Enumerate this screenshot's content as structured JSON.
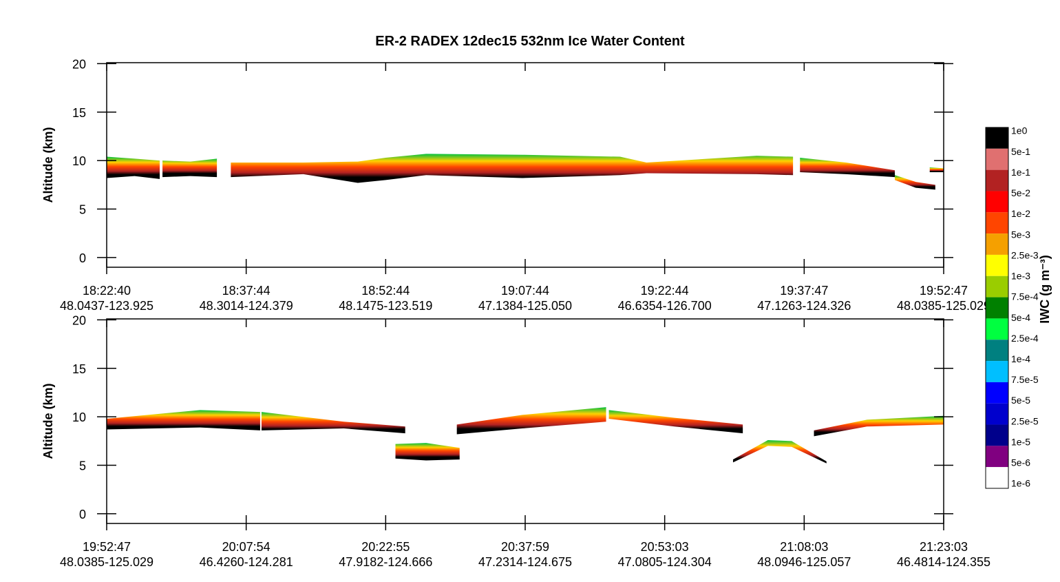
{
  "title": "ER-2  RADEX  12dec15  532nm Ice Water Content",
  "chart_data": [
    {
      "type": "area",
      "ylabel": "Altitude (km)",
      "ylim": [
        -1,
        20.1
      ],
      "yticks": [
        0,
        5,
        10,
        15,
        20
      ],
      "xlim": [
        0,
        6
      ],
      "xticks": [
        {
          "value": 0,
          "label": "18:22:40",
          "location": "48.0437-123.925"
        },
        {
          "value": 1,
          "label": "18:37:44",
          "location": "48.3014-124.379"
        },
        {
          "value": 2,
          "label": "18:52:44",
          "location": "48.1475-123.519"
        },
        {
          "value": 3,
          "label": "19:07:44",
          "location": "47.1384-125.050"
        },
        {
          "value": 4,
          "label": "19:22:44",
          "location": "46.6354-126.700"
        },
        {
          "value": 5,
          "label": "19:37:47",
          "location": "47.1263-124.326"
        },
        {
          "value": 6,
          "label": "19:52:47",
          "location": "48.0385-125.029"
        }
      ],
      "clouds": [
        {
          "x": [
            0,
            0.2,
            0.38
          ],
          "top": [
            10.4,
            10.2,
            10.0
          ],
          "base": [
            8.2,
            8.4,
            8.1
          ]
        },
        {
          "x": [
            0.4,
            0.6,
            0.79
          ],
          "top": [
            10,
            9.9,
            10.2
          ],
          "base": [
            8.3,
            8.4,
            8.3
          ]
        },
        {
          "x": [
            0.89,
            1.41,
            1.8,
            2.0,
            2.29,
            2.98,
            3.68,
            3.87,
            4.66,
            4.92
          ],
          "top": [
            9.8,
            9.8,
            9.9,
            10.3,
            10.7,
            10.6,
            10.4,
            9.8,
            10.5,
            10.4
          ],
          "base": [
            8.3,
            8.6,
            7.7,
            8.0,
            8.5,
            8.2,
            8.5,
            8.7,
            8.6,
            8.5
          ]
        },
        {
          "x": [
            4.97,
            5.3,
            5.65
          ],
          "top": [
            10.3,
            9.8,
            9.0
          ],
          "base": [
            8.8,
            8.6,
            8.3
          ]
        },
        {
          "x": [
            5.65,
            5.8,
            5.94
          ],
          "top": [
            8.5,
            7.8,
            7.5
          ],
          "base": [
            8.0,
            7.2,
            7.0
          ]
        },
        {
          "x": [
            5.9,
            6.0
          ],
          "top": [
            9.3,
            9.2
          ],
          "base": [
            8.8,
            8.8
          ]
        }
      ]
    },
    {
      "type": "area",
      "ylabel": "Altitude (km)",
      "ylim": [
        -1,
        20.1
      ],
      "yticks": [
        0,
        5,
        10,
        15,
        20
      ],
      "xlim": [
        0,
        6
      ],
      "xticks": [
        {
          "value": 0,
          "label": "19:52:47",
          "location": "48.0385-125.029"
        },
        {
          "value": 1,
          "label": "20:07:54",
          "location": "46.4260-124.281"
        },
        {
          "value": 2,
          "label": "20:22:55",
          "location": "47.9182-124.666"
        },
        {
          "value": 3,
          "label": "20:37:59",
          "location": "47.2314-124.675"
        },
        {
          "value": 4,
          "label": "20:53:03",
          "location": "47.0805-124.304"
        },
        {
          "value": 5,
          "label": "21:08:03",
          "location": "48.0946-125.057"
        },
        {
          "value": 6,
          "label": "21:23:03",
          "location": "46.4814-124.355"
        }
      ],
      "clouds": [
        {
          "x": [
            0,
            0.67,
            1.1
          ],
          "top": [
            9.8,
            10.7,
            10.5
          ],
          "base": [
            8.7,
            8.9,
            8.6
          ]
        },
        {
          "x": [
            1.11,
            1.7,
            2.14
          ],
          "top": [
            10.5,
            9.5,
            9.0
          ],
          "base": [
            8.6,
            8.8,
            8.3
          ]
        },
        {
          "x": [
            2.07,
            2.29,
            2.53
          ],
          "top": [
            7.2,
            7.3,
            6.8
          ],
          "base": [
            5.7,
            5.5,
            5.6
          ]
        },
        {
          "x": [
            2.51,
            2.98,
            3.58
          ],
          "top": [
            9.2,
            10.2,
            11.0
          ],
          "base": [
            8.2,
            8.8,
            9.5
          ]
        },
        {
          "x": [
            3.6,
            4.07,
            4.56
          ],
          "top": [
            10.7,
            9.9,
            9.2
          ],
          "base": [
            9.8,
            9.0,
            8.3
          ]
        },
        {
          "x": [
            4.49,
            4.74,
            4.91,
            5.16
          ],
          "top": [
            5.6,
            7.6,
            7.5,
            5.4
          ],
          "base": [
            5.3,
            7.0,
            6.9,
            5.2
          ]
        },
        {
          "x": [
            5.07,
            5.45,
            6.0
          ],
          "top": [
            8.6,
            9.7,
            10.1
          ],
          "base": [
            8.0,
            9.0,
            9.2
          ]
        }
      ]
    }
  ],
  "colorbar": {
    "label": "IWC (g m⁻³)",
    "colors": [
      "#000000",
      "#e07070",
      "#b22222",
      "#ff0000",
      "#ff4500",
      "#f5a000",
      "#ffff00",
      "#9acd00",
      "#008000",
      "#00ff40",
      "#008080",
      "#00bfff",
      "#0000ff",
      "#0000cd",
      "#00008b",
      "#800080",
      "#ffffff"
    ],
    "labels": [
      "1e0",
      "5e-1",
      "1e-1",
      "5e-2",
      "1e-2",
      "5e-3",
      "2.5e-3",
      "1e-3",
      "7.5e-4",
      "5e-4",
      "2.5e-4",
      "1e-4",
      "7.5e-5",
      "5e-5",
      "2.5e-5",
      "1e-5",
      "5e-6",
      "1e-6"
    ]
  }
}
